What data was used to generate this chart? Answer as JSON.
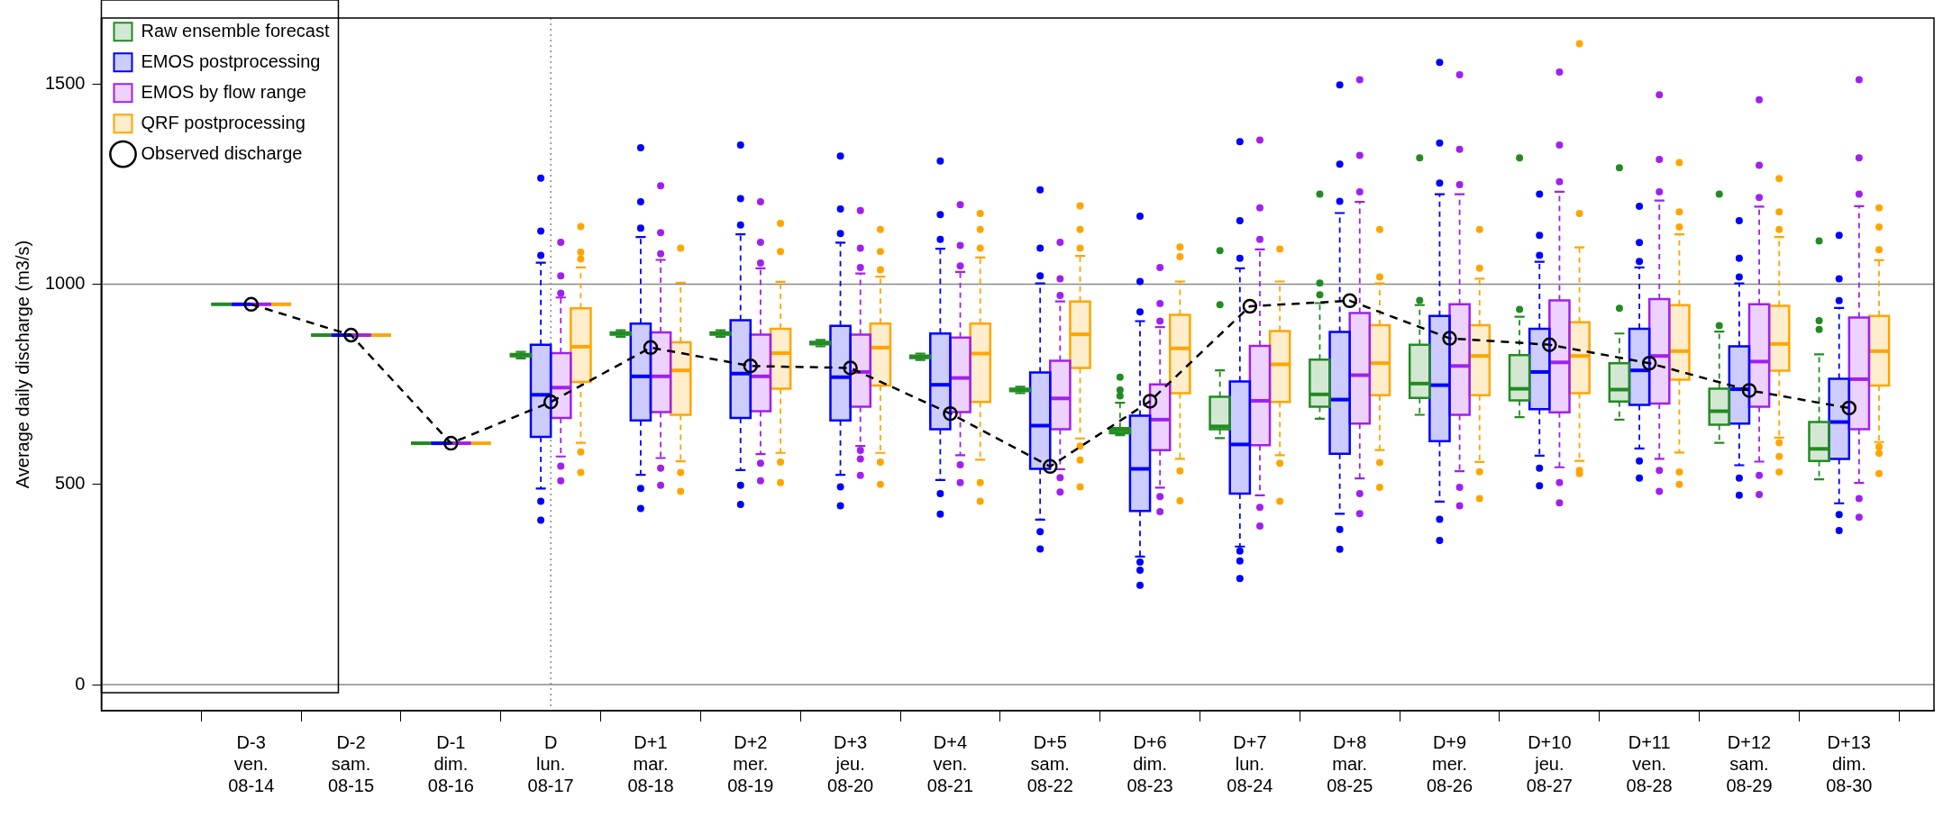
{
  "chart_data": {
    "type": "box",
    "ylabel": "Average daily discharge (m3/s)",
    "categories": [
      "D-3\nven.\n08-14",
      "D-2\nsam.\n08-15",
      "D-1\ndim.\n08-16",
      "D\nlun.\n08-17",
      "D+1\nmar.\n08-18",
      "D+2\nmer.\n08-19",
      "D+3\njeu.\n08-20",
      "D+4\nven.\n08-21",
      "D+5\nsam.\n08-22",
      "D+6\ndim.\n08-23",
      "D+7\nlun.\n08-24",
      "D+8\nmar.\n08-25",
      "D+9\nmer.\n08-26",
      "D+10\njeu.\n08-27",
      "D+11\nven.\n08-28",
      "D+12\nsam.\n08-29",
      "D+13\ndim.\n08-30"
    ],
    "ylim": [
      -65,
      1665
    ],
    "yticks": [
      0,
      500,
      1000,
      1500
    ],
    "legend": "top left",
    "ref_lines": [
      {
        "axis": "y",
        "value": 0,
        "color": "#888888",
        "line_style": "solid"
      },
      {
        "axis": "y",
        "value": 1000,
        "color": "#888888",
        "line_style": "solid"
      },
      {
        "axis": "x",
        "value": "D\nlun.\n08-17",
        "color": "#888888",
        "line_style": "dotted"
      }
    ],
    "series": [
      {
        "name": "Raw ensemble forecast",
        "color": "#228b22",
        "boxes": [
          {
            "low": 950,
            "q1": 950,
            "median": 950,
            "q3": 950,
            "high": 950
          },
          {
            "low": 873,
            "q1": 873,
            "median": 873,
            "q3": 873,
            "high": 873
          },
          {
            "low": 603,
            "q1": 603,
            "median": 603,
            "q3": 603,
            "high": 603
          },
          {
            "low": 815,
            "q1": 820,
            "median": 823,
            "q3": 826,
            "high": 831
          },
          {
            "low": 869,
            "q1": 874,
            "median": 877,
            "q3": 880,
            "high": 885
          },
          {
            "low": 869,
            "q1": 874,
            "median": 877,
            "q3": 880,
            "high": 885
          },
          {
            "low": 845,
            "q1": 850,
            "median": 853,
            "q3": 856,
            "high": 861
          },
          {
            "low": 811,
            "q1": 816,
            "median": 819,
            "q3": 822,
            "high": 827
          },
          {
            "low": 728,
            "q1": 733,
            "median": 736,
            "q3": 739,
            "high": 744
          },
          {
            "low": 623,
            "q1": 628,
            "median": 635,
            "q3": 641,
            "high": 704,
            "outliers": [
              721,
              736,
              768
            ]
          },
          {
            "low": 616,
            "q1": 638,
            "median": 645,
            "q3": 719,
            "high": 785,
            "outliers": [
              949,
              1084
            ]
          },
          {
            "low": 664,
            "q1": 694,
            "median": 725,
            "q3": 812,
            "high": 953,
            "outliers": [
              974,
              1003,
              1225
            ]
          },
          {
            "low": 674,
            "q1": 716,
            "median": 752,
            "q3": 849,
            "high": 948,
            "outliers": [
              960,
              1316
            ]
          },
          {
            "low": 668,
            "q1": 710,
            "median": 739,
            "q3": 823,
            "high": 919,
            "outliers": [
              937,
              1316
            ]
          },
          {
            "low": 662,
            "q1": 707,
            "median": 737,
            "q3": 803,
            "high": 877,
            "outliers": [
              940,
              1291
            ]
          },
          {
            "low": 604,
            "q1": 649,
            "median": 683,
            "q3": 739,
            "high": 882,
            "outliers": [
              897,
              1225
            ]
          },
          {
            "low": 513,
            "q1": 559,
            "median": 589,
            "q3": 656,
            "high": 825,
            "outliers": [
              887,
              909,
              1108
            ]
          }
        ]
      },
      {
        "name": "EMOS postprocessing",
        "color": "#0000ff",
        "boxes": [
          {
            "low": 950,
            "q1": 950,
            "median": 950,
            "q3": 950,
            "high": 950
          },
          {
            "low": 873,
            "q1": 873,
            "median": 873,
            "q3": 873,
            "high": 873
          },
          {
            "low": 603,
            "q1": 603,
            "median": 603,
            "q3": 603,
            "high": 603
          },
          {
            "low": 490,
            "q1": 619,
            "median": 724,
            "q3": 849,
            "high": 1054,
            "outliers": [
              1072,
              1133,
              1265,
              458,
              411
            ]
          },
          {
            "low": 524,
            "q1": 660,
            "median": 770,
            "q3": 902,
            "high": 1118,
            "outliers": [
              1140,
              1206,
              1341,
              490,
              440
            ]
          },
          {
            "low": 536,
            "q1": 666,
            "median": 777,
            "q3": 910,
            "high": 1125,
            "outliers": [
              1148,
              1214,
              1348,
              498,
              450
            ]
          },
          {
            "low": 524,
            "q1": 660,
            "median": 768,
            "q3": 896,
            "high": 1104,
            "outliers": [
              1127,
              1188,
              1320,
              494,
              447
            ]
          },
          {
            "low": 511,
            "q1": 638,
            "median": 749,
            "q3": 877,
            "high": 1089,
            "outliers": [
              1112,
              1174,
              1308,
              477,
              426
            ]
          },
          {
            "low": 412,
            "q1": 539,
            "median": 647,
            "q3": 780,
            "high": 1002,
            "outliers": [
              1021,
              1090,
              1236,
              382,
              339
            ]
          },
          {
            "low": 320,
            "q1": 434,
            "median": 539,
            "q3": 672,
            "high": 908,
            "outliers": [
              931,
              1007,
              1170,
              306,
              286,
              248
            ]
          },
          {
            "low": 345,
            "q1": 477,
            "median": 600,
            "q3": 757,
            "high": 1040,
            "outliers": [
              1065,
              1159,
              1356,
              334,
              309,
              265
            ]
          },
          {
            "low": 427,
            "q1": 577,
            "median": 712,
            "q3": 881,
            "high": 1178,
            "outliers": [
              1207,
              1300,
              1498,
              388,
              338
            ]
          },
          {
            "low": 457,
            "q1": 608,
            "median": 748,
            "q3": 921,
            "high": 1225,
            "outliers": [
              1253,
              1353,
              1554,
              413,
              360
            ]
          },
          {
            "low": 572,
            "q1": 688,
            "median": 781,
            "q3": 889,
            "high": 1056,
            "outliers": [
              1072,
              1122,
              1225,
              541,
              497
            ]
          },
          {
            "low": 590,
            "q1": 699,
            "median": 785,
            "q3": 889,
            "high": 1042,
            "outliers": [
              1057,
              1104,
              1195,
              559,
              516
            ]
          },
          {
            "low": 548,
            "q1": 652,
            "median": 738,
            "q3": 845,
            "high": 1002,
            "outliers": [
              1018,
              1065,
              1159,
              516,
              473
            ]
          },
          {
            "low": 453,
            "q1": 564,
            "median": 656,
            "q3": 764,
            "high": 941,
            "outliers": [
              959,
              1014,
              1122,
              425,
              385
            ]
          }
        ]
      },
      {
        "name": "EMOS by flow range",
        "color": "#a020f0",
        "boxes": [
          {
            "low": 950,
            "q1": 950,
            "median": 950,
            "q3": 950,
            "high": 950
          },
          {
            "low": 873,
            "q1": 873,
            "median": 873,
            "q3": 873,
            "high": 873
          },
          {
            "low": 603,
            "q1": 603,
            "median": 603,
            "q3": 603,
            "high": 603
          },
          {
            "low": 570,
            "q1": 666,
            "median": 742,
            "q3": 828,
            "high": 967,
            "outliers": [
              978,
              1021,
              1105,
              546,
              509
            ]
          },
          {
            "low": 566,
            "q1": 681,
            "median": 770,
            "q3": 880,
            "high": 1061,
            "outliers": [
              1076,
              1129,
              1246,
              541,
              498
            ]
          },
          {
            "low": 576,
            "q1": 683,
            "median": 770,
            "q3": 874,
            "high": 1040,
            "outliers": [
              1053,
              1105,
              1206,
              553,
              509
            ]
          },
          {
            "low": 596,
            "q1": 694,
            "median": 781,
            "q3": 874,
            "high": 1027,
            "outliers": [
              1042,
              1090,
              1184,
              585,
              564,
              523
            ]
          },
          {
            "low": 573,
            "q1": 681,
            "median": 766,
            "q3": 867,
            "high": 1031,
            "outliers": [
              1046,
              1097,
              1199,
              549,
              505
            ]
          },
          {
            "low": 538,
            "q1": 638,
            "median": 715,
            "q3": 809,
            "high": 957,
            "outliers": [
              972,
              1014,
              1105,
              517,
              481
            ]
          },
          {
            "low": 492,
            "q1": 586,
            "median": 662,
            "q3": 750,
            "high": 893,
            "outliers": [
              908,
              952,
              1042,
              470,
              432
            ]
          },
          {
            "low": 473,
            "q1": 598,
            "median": 709,
            "q3": 846,
            "high": 1087,
            "outliers": [
              1112,
              1191,
              1360,
              443,
              396
            ]
          },
          {
            "low": 515,
            "q1": 652,
            "median": 773,
            "q3": 928,
            "high": 1206,
            "outliers": [
              1231,
              1322,
              1511,
              477,
              427
            ]
          },
          {
            "low": 533,
            "q1": 674,
            "median": 796,
            "q3": 950,
            "high": 1225,
            "outliers": [
              1249,
              1337,
              1523,
              493,
              447
            ]
          },
          {
            "low": 543,
            "q1": 680,
            "median": 805,
            "q3": 960,
            "high": 1231,
            "outliers": [
              1256,
              1348,
              1530,
              505,
              454
            ]
          },
          {
            "low": 564,
            "q1": 702,
            "median": 821,
            "q3": 963,
            "high": 1209,
            "outliers": [
              1231,
              1312,
              1473,
              535,
              483
            ]
          },
          {
            "low": 557,
            "q1": 694,
            "median": 807,
            "q3": 950,
            "high": 1194,
            "outliers": [
              1217,
              1297,
              1461,
              523,
              475
            ]
          },
          {
            "low": 504,
            "q1": 638,
            "median": 763,
            "q3": 917,
            "high": 1195,
            "outliers": [
              1225,
              1316,
              1511,
              465,
              418
            ]
          }
        ]
      },
      {
        "name": "QRF postprocessing",
        "color": "#ffa500",
        "boxes": [
          {
            "low": 950,
            "q1": 950,
            "median": 950,
            "q3": 950,
            "high": 950
          },
          {
            "low": 873,
            "q1": 873,
            "median": 873,
            "q3": 873,
            "high": 873
          },
          {
            "low": 603,
            "q1": 603,
            "median": 603,
            "q3": 603,
            "high": 603
          },
          {
            "low": 604,
            "q1": 756,
            "median": 844,
            "q3": 940,
            "high": 1042,
            "outliers": [
              1063,
              1080,
              1144,
              581,
              530
            ]
          },
          {
            "low": 558,
            "q1": 674,
            "median": 785,
            "q3": 855,
            "high": 1004,
            "outliers": [
              1090,
              530,
              483
            ]
          },
          {
            "low": 579,
            "q1": 739,
            "median": 828,
            "q3": 889,
            "high": 1006,
            "outliers": [
              1082,
              1152,
              556,
              505
            ]
          },
          {
            "low": 579,
            "q1": 747,
            "median": 842,
            "q3": 902,
            "high": 1019,
            "outliers": [
              1036,
              1082,
              1137,
              556,
              500
            ]
          },
          {
            "low": 562,
            "q1": 706,
            "median": 827,
            "q3": 902,
            "high": 1067,
            "outliers": [
              1090,
              1137,
              1177,
              505,
              458
            ]
          },
          {
            "low": 615,
            "q1": 791,
            "median": 875,
            "q3": 957,
            "high": 1071,
            "outliers": [
              1090,
              1137,
              1196,
              596,
              561,
              494
            ]
          },
          {
            "low": 564,
            "q1": 728,
            "median": 840,
            "q3": 924,
            "high": 1007,
            "outliers": [
              1069,
              1093,
              534,
              459
            ]
          },
          {
            "low": 573,
            "q1": 706,
            "median": 800,
            "q3": 883,
            "high": 1007,
            "outliers": [
              1088,
              553,
              458
            ]
          },
          {
            "low": 586,
            "q1": 723,
            "median": 803,
            "q3": 898,
            "high": 1002,
            "outliers": [
              1018,
              1137,
              555,
              493
            ]
          },
          {
            "low": 556,
            "q1": 723,
            "median": 821,
            "q3": 898,
            "high": 1014,
            "outliers": [
              1040,
              1137,
              532,
              465
            ]
          },
          {
            "low": 559,
            "q1": 728,
            "median": 821,
            "q3": 905,
            "high": 1092,
            "outliers": [
              1177,
              1601,
              535,
              527
            ]
          },
          {
            "low": 580,
            "q1": 762,
            "median": 833,
            "q3": 948,
            "high": 1125,
            "outliers": [
              1143,
              1181,
              1304,
              531,
              500
            ]
          },
          {
            "low": 617,
            "q1": 784,
            "median": 851,
            "q3": 946,
            "high": 1118,
            "outliers": [
              1137,
              1181,
              1264,
              604,
              570,
              531
            ]
          },
          {
            "low": 606,
            "q1": 747,
            "median": 833,
            "q3": 921,
            "high": 1060,
            "outliers": [
              1086,
              1143,
              1191,
              594,
              578,
              527
            ]
          }
        ]
      },
      {
        "name": "Observed discharge",
        "type": "line",
        "color": "#000000",
        "marker": "circle",
        "line_style": "dashed",
        "values": [
          950,
          873,
          603,
          706,
          842,
          796,
          791,
          677,
          545,
          708,
          945,
          959,
          865,
          849,
          803,
          735,
          691
        ]
      }
    ]
  }
}
